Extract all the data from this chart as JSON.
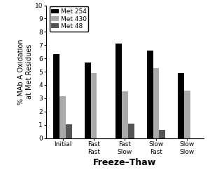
{
  "categories": [
    "Initial",
    "Fast\nFast",
    "Fast\nSlow",
    "Slow\nFast",
    "Slow\nSlow"
  ],
  "series": {
    "Met 254": [
      6.3,
      5.7,
      7.1,
      6.6,
      4.9
    ],
    "Met 430": [
      3.15,
      4.9,
      3.5,
      5.25,
      3.55
    ],
    "Met 48": [
      1.05,
      0.0,
      1.1,
      0.6,
      0.0
    ]
  },
  "colors": {
    "Met 254": "#000000",
    "Met 430": "#aaaaaa",
    "Met 48": "#555555"
  },
  "ylabel": "% MAb A Oxidation\nat Met Residues",
  "xlabel": "Freeze–Thaw",
  "ylim": [
    0,
    10
  ],
  "yticks": [
    0,
    1,
    2,
    3,
    4,
    5,
    6,
    7,
    8,
    9,
    10
  ],
  "bar_width": 0.2,
  "legend_order": [
    "Met 254",
    "Met 430",
    "Met 48"
  ],
  "ylabel_fontsize": 7,
  "xlabel_fontsize": 9,
  "tick_fontsize": 6.5,
  "legend_fontsize": 6.5
}
